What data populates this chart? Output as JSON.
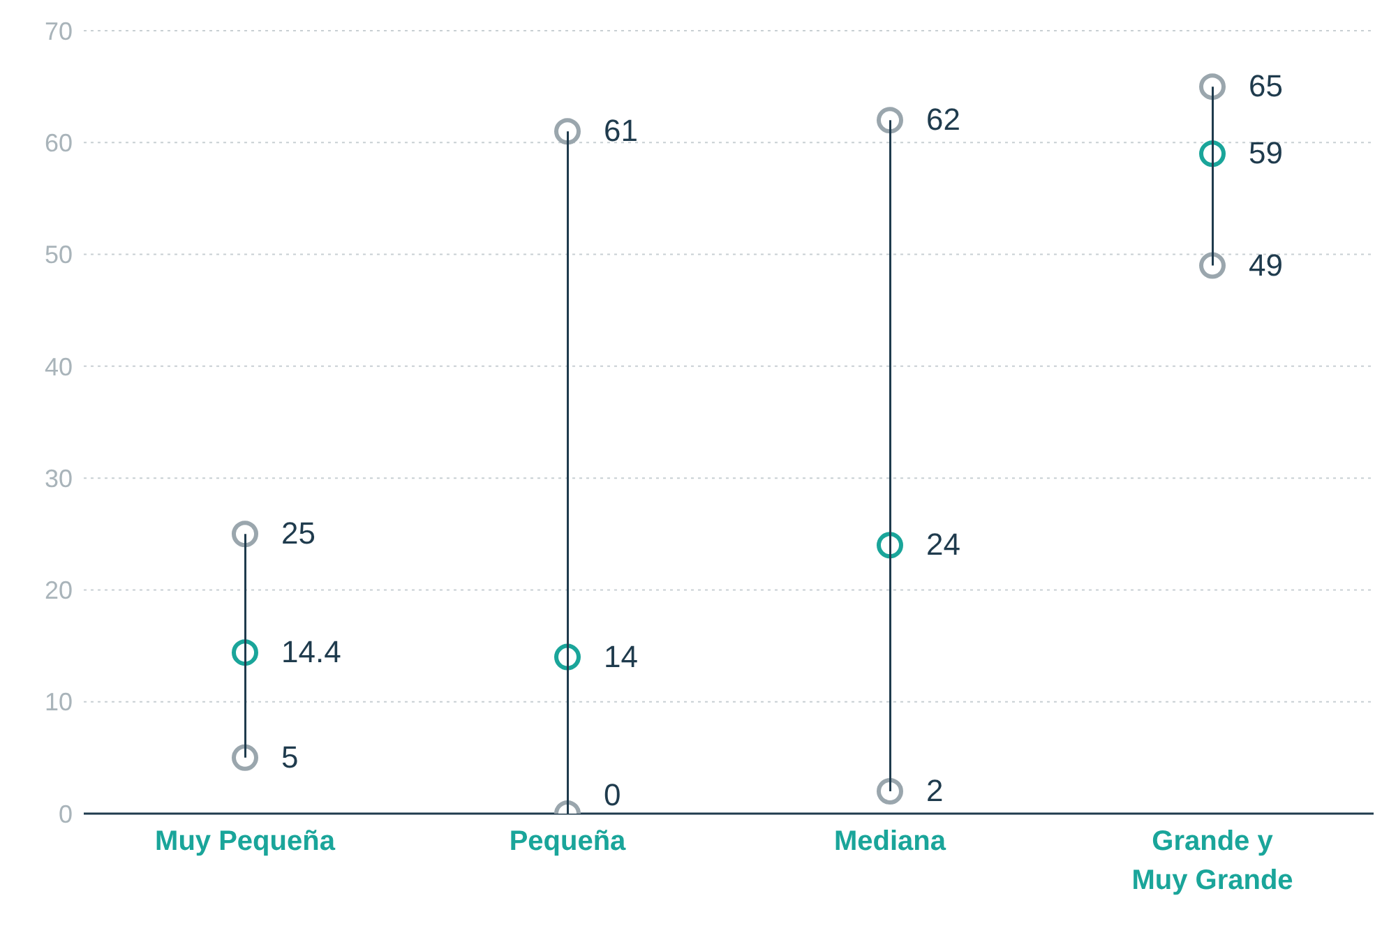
{
  "chart_data": {
    "type": "scatter",
    "categories": [
      "Muy Pequeña",
      "Pequeña",
      "Mediana",
      "Grande y Muy Grande"
    ],
    "series": [
      {
        "type": "bar",
        "color": "#1f3b4d",
        "base": [
          5,
          0,
          2,
          49
        ],
        "values": [
          20,
          61,
          60,
          16
        ]
      },
      {
        "color": "#9aa6ad",
        "values": [
          5,
          0,
          2,
          49
        ],
        "value_labels": [
          "5",
          "0",
          "2",
          "49"
        ]
      },
      {
        "color": "#1aa59a",
        "values": [
          14.4,
          14,
          24,
          59
        ],
        "value_labels": [
          "14.4",
          "14",
          "24",
          "59"
        ]
      },
      {
        "color": "#9aa6ad",
        "values": [
          25,
          61,
          62,
          65
        ],
        "value_labels": [
          "25",
          "61",
          "62",
          "65"
        ]
      }
    ],
    "ylim": [
      0,
      70
    ],
    "yticks": [
      0,
      10,
      20,
      30,
      40,
      50,
      60,
      70
    ],
    "grid": "y",
    "marker": "circle",
    "legend": false
  }
}
